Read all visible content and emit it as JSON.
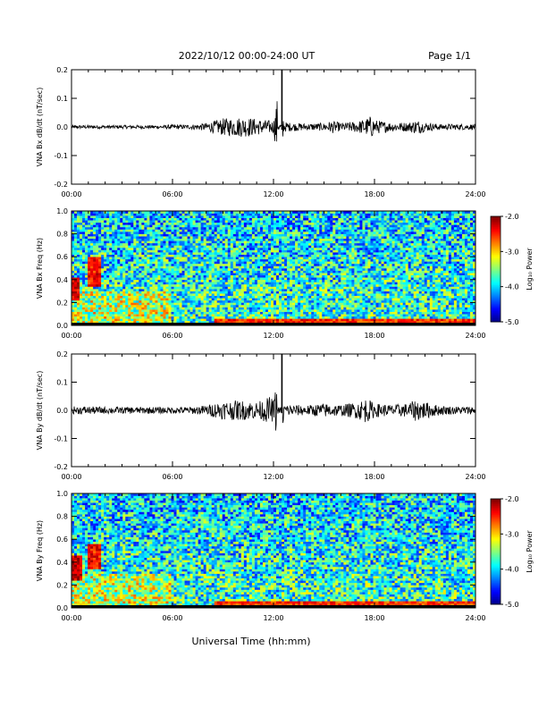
{
  "header": {
    "date_range": "2022/10/12  00:00-24:00 UT",
    "page": "Page 1/1"
  },
  "xlabel": "Universal Time (hh:mm)",
  "time_ticks": [
    "00:00",
    "06:00",
    "12:00",
    "18:00",
    "24:00"
  ],
  "colors": {
    "trace": "#000000",
    "frame": "#000000"
  },
  "chart_data": [
    {
      "type": "line",
      "ylabel": "VNA Bx dB/dt (nT/sec)",
      "ylim": [
        -0.2,
        0.2
      ],
      "yticks": [
        "0.2",
        "0.1",
        "0.0",
        "-0.1",
        "-0.2"
      ],
      "x_hours": [
        0,
        1,
        2,
        3,
        4,
        5,
        6,
        7,
        8,
        8.5,
        9,
        9.5,
        10,
        10.5,
        11,
        11.5,
        12,
        12.5,
        12.6,
        13,
        14,
        15,
        15.5,
        16,
        17,
        17.5,
        17.8,
        18,
        19,
        20,
        20.5,
        21,
        22,
        23,
        24
      ],
      "y_envelope": [
        0.006,
        0.006,
        0.006,
        0.006,
        0.006,
        0.006,
        0.008,
        0.008,
        0.014,
        0.022,
        0.03,
        0.032,
        0.035,
        0.034,
        0.028,
        0.025,
        0.022,
        0.2,
        0.018,
        0.015,
        0.012,
        0.014,
        0.022,
        0.014,
        0.02,
        0.03,
        0.04,
        0.025,
        0.016,
        0.016,
        0.026,
        0.016,
        0.01,
        0.01,
        0.01
      ]
    },
    {
      "type": "heatmap",
      "ylabel": "VNA Bx Freq (Hz)",
      "ylim": [
        0,
        1.0
      ],
      "yticks": [
        "1.0",
        "0.8",
        "0.6",
        "0.4",
        "0.2",
        "0.0"
      ],
      "colorbar": {
        "label": "Log₁₀ Power",
        "ticks": [
          "-2.0",
          "-3.0",
          "-4.0",
          "-5.0"
        ],
        "range": [
          -5.0,
          -2.0
        ]
      },
      "features": [
        {
          "hour_range": [
            0,
            0.5
          ],
          "freq_range": [
            0.22,
            0.42
          ],
          "log_power": -2.3
        },
        {
          "hour_range": [
            0.9,
            1.7
          ],
          "freq_range": [
            0.35,
            0.6
          ],
          "log_power": -2.4
        },
        {
          "hour_range": [
            8.5,
            24
          ],
          "freq_range": [
            0,
            0.05
          ],
          "log_power": -2.5
        }
      ],
      "background_log_power": -3.7
    },
    {
      "type": "line",
      "ylabel": "VNA By dB/dt (nT/sec)",
      "ylim": [
        -0.2,
        0.2
      ],
      "yticks": [
        "0.2",
        "0.1",
        "0.0",
        "-0.1",
        "-0.2"
      ],
      "x_hours": [
        0,
        1,
        2,
        3,
        4,
        5,
        6,
        7,
        8,
        8.5,
        9,
        9.5,
        10,
        10.5,
        11,
        11.5,
        11.8,
        12,
        12.5,
        12.6,
        13,
        14,
        15,
        16,
        17,
        17.5,
        18,
        19,
        20,
        20.5,
        21,
        22,
        23,
        24
      ],
      "y_envelope": [
        0.014,
        0.014,
        0.012,
        0.012,
        0.012,
        0.012,
        0.012,
        0.012,
        0.018,
        0.026,
        0.032,
        0.034,
        0.036,
        0.033,
        0.03,
        0.04,
        0.05,
        0.035,
        0.2,
        0.025,
        0.02,
        0.018,
        0.025,
        0.02,
        0.03,
        0.045,
        0.025,
        0.02,
        0.025,
        0.04,
        0.03,
        0.016,
        0.014,
        0.014
      ]
    },
    {
      "type": "heatmap",
      "ylabel": "VNA By Freq (Hz)",
      "ylim": [
        0,
        1.0
      ],
      "yticks": [
        "1.0",
        "0.8",
        "0.6",
        "0.4",
        "0.2",
        "0.0"
      ],
      "colorbar": {
        "label": "Log₁₀ Power",
        "ticks": [
          "-2.0",
          "-3.0",
          "-4.0",
          "-5.0"
        ],
        "range": [
          -5.0,
          -2.0
        ]
      },
      "features": [
        {
          "hour_range": [
            0,
            0.6
          ],
          "freq_range": [
            0.25,
            0.45
          ],
          "log_power": -2.2
        },
        {
          "hour_range": [
            1.0,
            1.8
          ],
          "freq_range": [
            0.35,
            0.55
          ],
          "log_power": -2.4
        },
        {
          "hour_range": [
            8.5,
            24
          ],
          "freq_range": [
            0,
            0.05
          ],
          "log_power": -2.5
        }
      ],
      "background_log_power": -3.7
    }
  ]
}
